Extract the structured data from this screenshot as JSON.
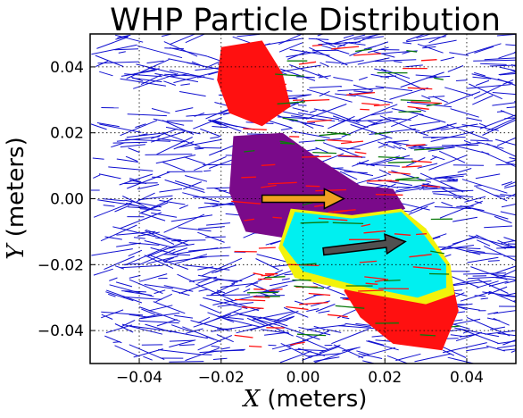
{
  "chart_data": {
    "type": "scatter",
    "title": "WHP Particle Distribution",
    "xlabel": {
      "var": "X",
      "unit": " (meters)"
    },
    "ylabel": {
      "var": "Y",
      "unit": " (meters)"
    },
    "xlim": [
      -0.052,
      0.052
    ],
    "ylim": [
      -0.05,
      0.05
    ],
    "x_ticks": [
      {
        "value": -0.04,
        "label": "−0.04"
      },
      {
        "value": -0.02,
        "label": "−0.02"
      },
      {
        "value": 0.0,
        "label": "0.00"
      },
      {
        "value": 0.02,
        "label": "0.02"
      },
      {
        "value": 0.04,
        "label": "0.04"
      }
    ],
    "y_ticks": [
      {
        "value": 0.04,
        "label": "0.04"
      },
      {
        "value": 0.02,
        "label": "0.02"
      },
      {
        "value": 0.0,
        "label": "0.00"
      },
      {
        "value": -0.02,
        "label": "−0.02"
      },
      {
        "value": -0.04,
        "label": "−0.04"
      }
    ],
    "grid": true,
    "grid_style": "dotted",
    "colors": {
      "background_blue": "#1010d0",
      "red": "#ff1010",
      "green": "#0a7a0a",
      "purple": "#7a0a8a",
      "yellow": "#f2f20a",
      "cyan": "#00f0f0",
      "orange_arrow": "#f0a020",
      "dark_arrow": "#505050"
    },
    "regions": [
      {
        "color": "purple",
        "points": [
          [
            -0.017,
            0.019
          ],
          [
            -0.005,
            0.02
          ],
          [
            0.004,
            0.012
          ],
          [
            0.014,
            0.004
          ],
          [
            0.022,
            0.003
          ],
          [
            0.025,
            -0.003
          ],
          [
            0.016,
            -0.008
          ],
          [
            0.006,
            -0.01
          ],
          [
            -0.004,
            -0.012
          ],
          [
            -0.014,
            -0.01
          ],
          [
            -0.018,
            0.002
          ]
        ]
      },
      {
        "color": "red",
        "points": [
          [
            -0.02,
            0.046
          ],
          [
            -0.01,
            0.048
          ],
          [
            -0.005,
            0.038
          ],
          [
            -0.003,
            0.028
          ],
          [
            -0.01,
            0.022
          ],
          [
            -0.018,
            0.026
          ],
          [
            -0.021,
            0.036
          ]
        ]
      },
      {
        "color": "red",
        "points": [
          [
            0.02,
            -0.004
          ],
          [
            0.03,
            -0.009
          ],
          [
            0.036,
            -0.022
          ],
          [
            0.038,
            -0.034
          ],
          [
            0.034,
            -0.046
          ],
          [
            0.022,
            -0.044
          ],
          [
            0.014,
            -0.036
          ],
          [
            0.01,
            -0.028
          ]
        ]
      },
      {
        "color": "yellow",
        "points": [
          [
            -0.003,
            -0.003
          ],
          [
            0.012,
            -0.005
          ],
          [
            0.024,
            -0.003
          ],
          [
            0.03,
            -0.009
          ],
          [
            0.036,
            -0.02
          ],
          [
            0.037,
            -0.029
          ],
          [
            0.03,
            -0.032
          ],
          [
            0.012,
            -0.028
          ],
          [
            -0.002,
            -0.024
          ],
          [
            -0.006,
            -0.015
          ]
        ]
      },
      {
        "color": "cyan",
        "points": [
          [
            -0.002,
            -0.004
          ],
          [
            0.012,
            -0.006
          ],
          [
            0.024,
            -0.004
          ],
          [
            0.029,
            -0.01
          ],
          [
            0.035,
            -0.02
          ],
          [
            0.035,
            -0.027
          ],
          [
            0.028,
            -0.03
          ],
          [
            0.012,
            -0.026
          ],
          [
            0.0,
            -0.022
          ],
          [
            -0.005,
            -0.014
          ]
        ]
      }
    ],
    "arrows": [
      {
        "color": "orange_arrow",
        "from": [
          -0.01,
          0.0
        ],
        "to": [
          0.01,
          0.0
        ]
      },
      {
        "color": "dark_arrow",
        "from": [
          0.005,
          -0.016
        ],
        "to": [
          0.025,
          -0.013
        ]
      }
    ]
  }
}
